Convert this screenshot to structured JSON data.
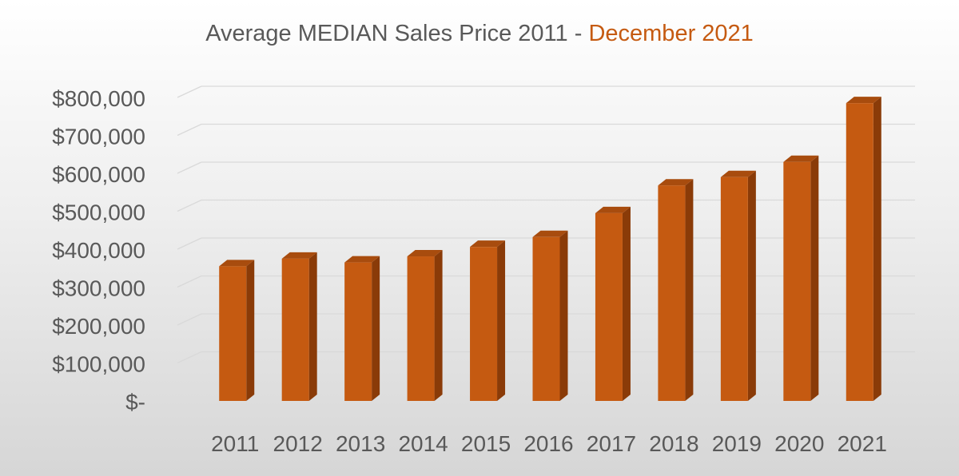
{
  "chart_data": {
    "type": "bar",
    "title": "Average MEDIAN Sales Price 2011 - ",
    "title_highlight": "December 2021",
    "categories": [
      "2011",
      "2012",
      "2013",
      "2014",
      "2015",
      "2016",
      "2017",
      "2018",
      "2019",
      "2020",
      "2021"
    ],
    "values": [
      355000,
      375000,
      365000,
      381000,
      406000,
      432000,
      495000,
      568000,
      590000,
      630000,
      785000
    ],
    "ylim": [
      0,
      800000
    ],
    "yticks": [
      0,
      100000,
      200000,
      300000,
      400000,
      500000,
      600000,
      700000,
      800000
    ],
    "ytick_labels": [
      "$-",
      "$100,000",
      "$200,000",
      "$300,000",
      "$400,000",
      "$500,000",
      "$600,000",
      "$700,000",
      "$800,000"
    ],
    "xlabel": "",
    "ylabel": "",
    "grid": true,
    "bar_color": "#c55a11",
    "bar_side_color": "#8a3b08",
    "bar_top_color": "#a84c0e",
    "title_accent_color": "#c55a11",
    "gridline_color": "#d9d9d9",
    "text_color": "#595959"
  }
}
